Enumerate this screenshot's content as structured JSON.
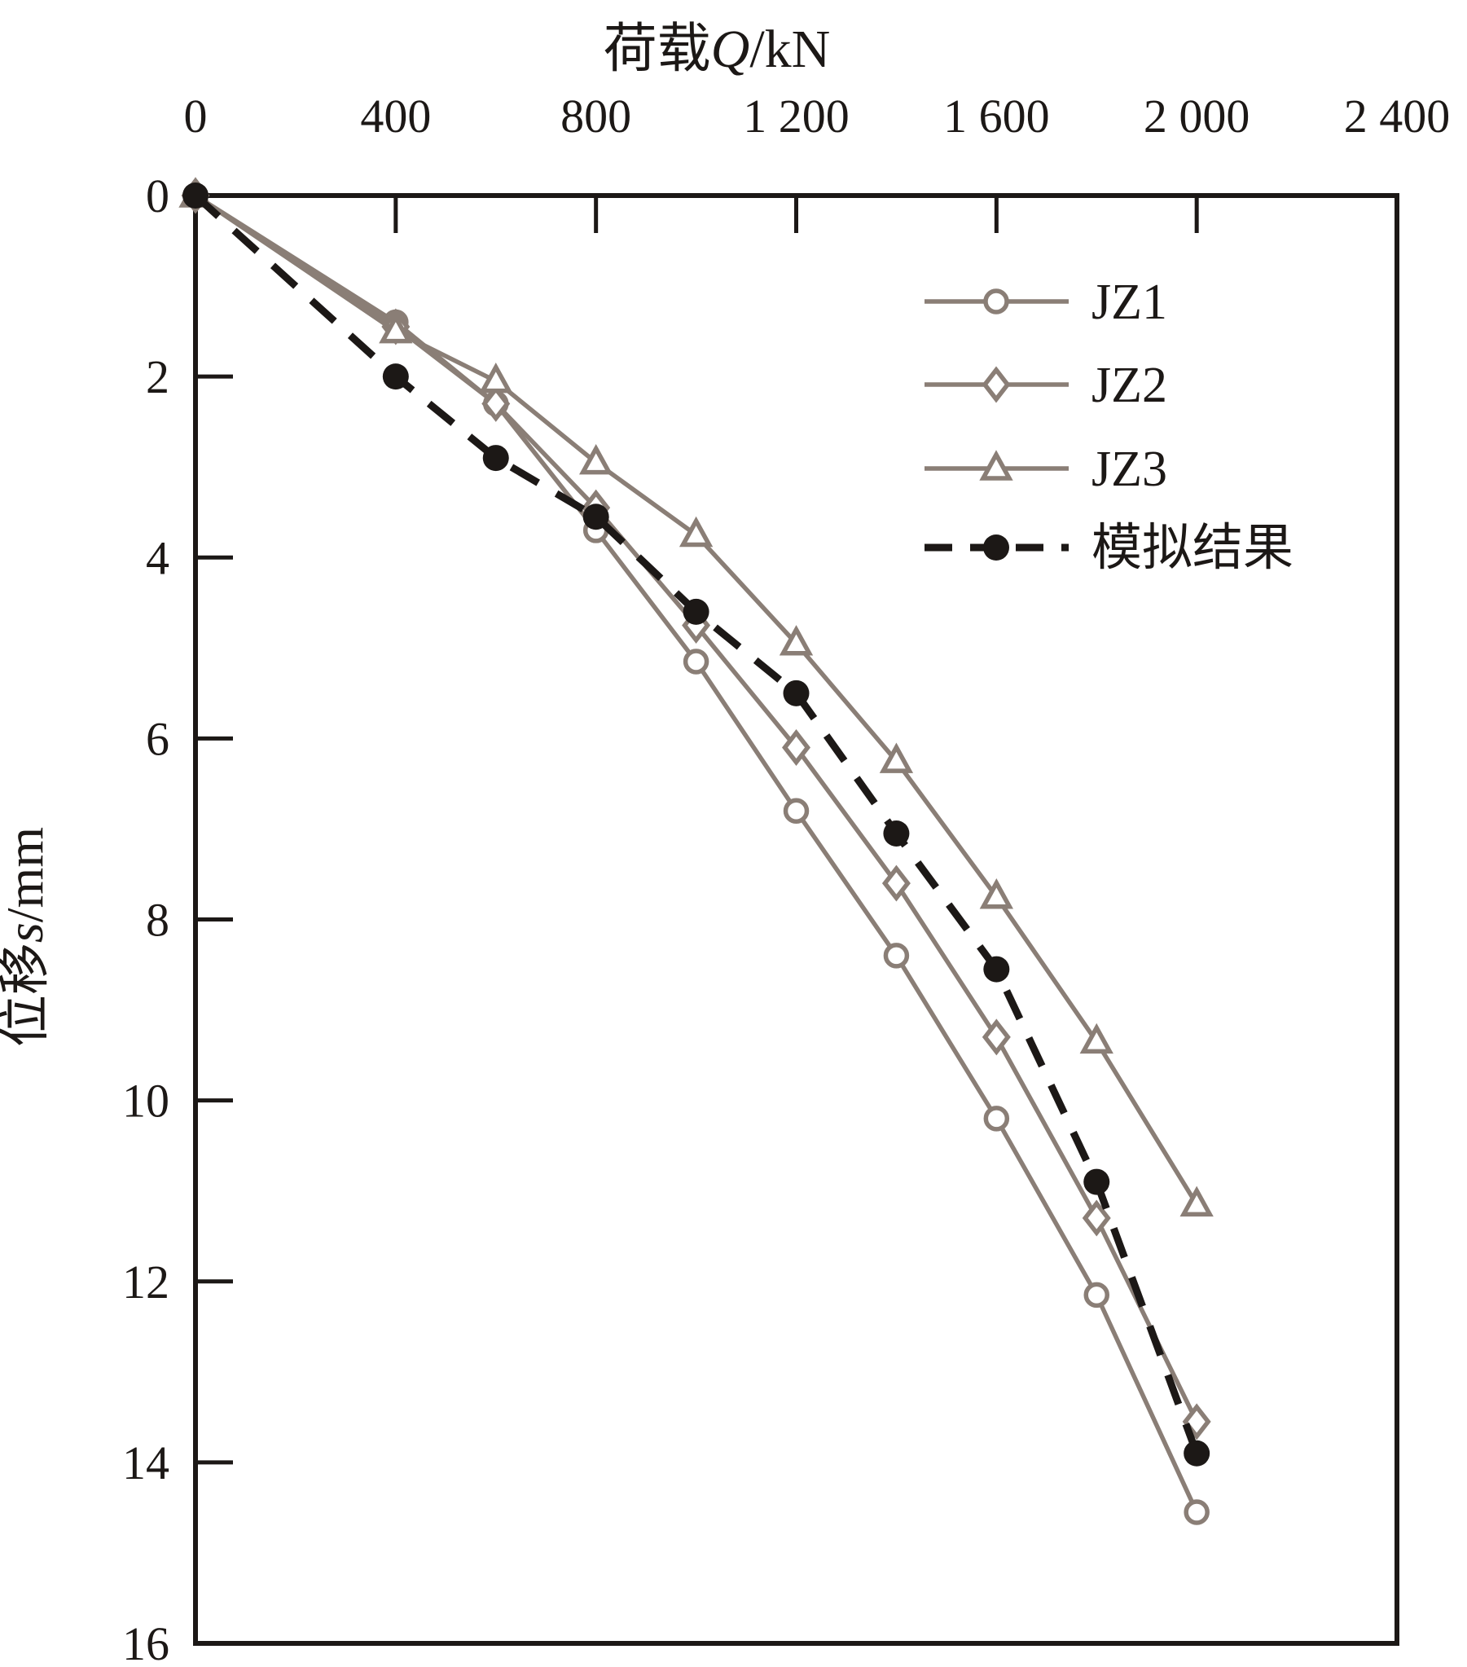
{
  "chart_data": {
    "type": "line",
    "title": {
      "prefix": "荷载",
      "variable": "Q",
      "suffix": "/kN"
    },
    "ylabel": {
      "prefix": "位移",
      "variable": "s",
      "suffix": "/mm"
    },
    "x_axis": {
      "min": 0,
      "max": 2400,
      "position": "top",
      "ticks": [
        {
          "value": 0,
          "label": "0"
        },
        {
          "value": 400,
          "label": "400"
        },
        {
          "value": 800,
          "label": "800"
        },
        {
          "value": 1200,
          "label": "1 200"
        },
        {
          "value": 1600,
          "label": "1 600"
        },
        {
          "value": 2000,
          "label": "2 000"
        },
        {
          "value": 2400,
          "label": "2 400"
        }
      ]
    },
    "y_axis": {
      "min": 0,
      "max": 16,
      "direction": "inverted",
      "ticks": [
        {
          "value": 0,
          "label": "0"
        },
        {
          "value": 2,
          "label": "2"
        },
        {
          "value": 4,
          "label": "4"
        },
        {
          "value": 6,
          "label": "6"
        },
        {
          "value": 8,
          "label": "8"
        },
        {
          "value": 10,
          "label": "10"
        },
        {
          "value": 12,
          "label": "12"
        },
        {
          "value": 14,
          "label": "14"
        },
        {
          "value": 16,
          "label": "16"
        }
      ]
    },
    "grid": "off",
    "legend_position": "upper-right-inside",
    "colors": {
      "measured": "#8a7e76",
      "simulated": "#1c1816"
    },
    "series": [
      {
        "name": "JZ1",
        "marker": "circle-open",
        "line": "solid",
        "color": "#8a7e76",
        "points": [
          [
            0,
            0
          ],
          [
            400,
            1.4
          ],
          [
            600,
            2.3
          ],
          [
            800,
            3.7
          ],
          [
            1000,
            5.15
          ],
          [
            1200,
            6.8
          ],
          [
            1400,
            8.4
          ],
          [
            1600,
            10.2
          ],
          [
            1800,
            12.15
          ],
          [
            2000,
            14.55
          ]
        ]
      },
      {
        "name": "JZ2",
        "marker": "diamond-open",
        "line": "solid",
        "color": "#8a7e76",
        "points": [
          [
            0,
            0
          ],
          [
            400,
            1.45
          ],
          [
            600,
            2.3
          ],
          [
            800,
            3.45
          ],
          [
            1000,
            4.75
          ],
          [
            1200,
            6.1
          ],
          [
            1400,
            7.6
          ],
          [
            1600,
            9.3
          ],
          [
            1800,
            11.3
          ],
          [
            2000,
            13.55
          ]
        ]
      },
      {
        "name": "JZ3",
        "marker": "triangle-open",
        "line": "solid",
        "color": "#8a7e76",
        "points": [
          [
            0,
            0
          ],
          [
            400,
            1.5
          ],
          [
            600,
            2.05
          ],
          [
            800,
            2.95
          ],
          [
            1000,
            3.75
          ],
          [
            1200,
            4.95
          ],
          [
            1400,
            6.25
          ],
          [
            1600,
            7.75
          ],
          [
            1800,
            9.35
          ],
          [
            2000,
            11.15
          ]
        ]
      },
      {
        "name": "模拟结果",
        "marker": "circle-filled",
        "line": "dashed",
        "color": "#1c1816",
        "points": [
          [
            0,
            0
          ],
          [
            400,
            2.0
          ],
          [
            600,
            2.9
          ],
          [
            800,
            3.55
          ],
          [
            1000,
            4.6
          ],
          [
            1200,
            5.5
          ],
          [
            1400,
            7.05
          ],
          [
            1600,
            8.55
          ],
          [
            1800,
            10.9
          ],
          [
            2000,
            13.9
          ]
        ]
      }
    ]
  }
}
